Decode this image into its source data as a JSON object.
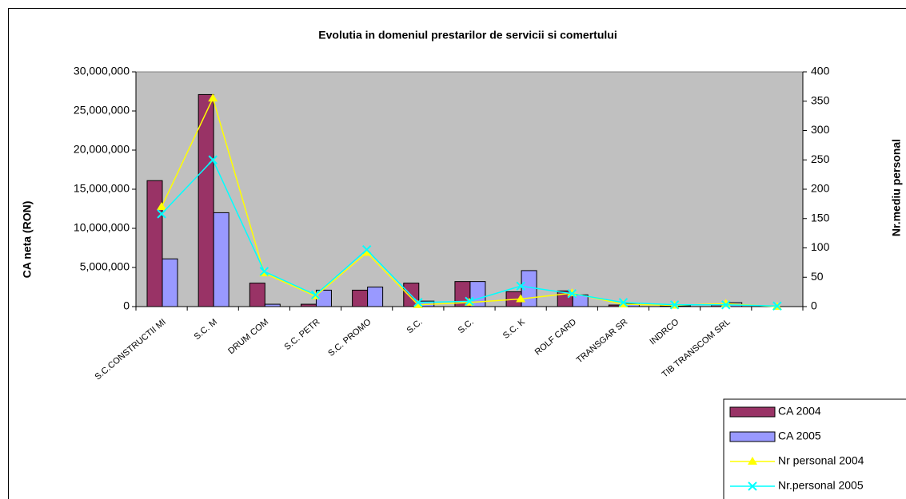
{
  "chart_data": {
    "type": "bar_line",
    "title": "Evolutia in domeniul prestarilor de servicii si comertului",
    "y_label": "CA neta (RON)",
    "y2_label": "Nr.mediu personal",
    "categories": [
      "S.C.CONSTRUCTII MI",
      "S.C. M",
      "DRUM COM",
      "S.C. PETR",
      "S.C. PROMO",
      "S.C.",
      "S.C.",
      "S.C. K",
      "ROLF CARD",
      "TRANSGAR SR",
      "INDRCO",
      "TIB TRANSCOM SRL",
      null
    ],
    "series": [
      {
        "name": "CA 2004",
        "kind": "bar",
        "color": "#993366",
        "values": [
          16100000,
          27100000,
          3000000,
          300000,
          2100000,
          3000000,
          3200000,
          1900000,
          2000000,
          200000,
          100000,
          200000,
          0
        ]
      },
      {
        "name": "CA 2005",
        "kind": "bar",
        "color": "#9999ff",
        "values": [
          6100000,
          12000000,
          300000,
          2100000,
          2500000,
          700000,
          3200000,
          4600000,
          1500000,
          400000,
          100000,
          500000,
          0
        ]
      },
      {
        "name": "Nr personal 2004",
        "kind": "line",
        "axis": "y2",
        "marker": "triangle",
        "color": "#ffff00",
        "values": [
          170,
          355,
          57,
          18,
          92,
          3,
          7,
          13,
          23,
          4,
          2,
          5,
          0
        ]
      },
      {
        "name": "Nr.personal 2005",
        "kind": "line",
        "axis": "y2",
        "marker": "x",
        "color": "#00ffff",
        "values": [
          158,
          250,
          60,
          20,
          97,
          7,
          9,
          35,
          22,
          7,
          3,
          3,
          1
        ]
      }
    ],
    "ylim": [
      0,
      30000000
    ],
    "yticks": [
      0,
      {
        "value": 5000000,
        "label": "5,000,000"
      },
      {
        "value": 10000000,
        "label": "10,000,000"
      },
      {
        "value": 15000000,
        "label": "15,000,000"
      },
      {
        "value": 20000000,
        "label": "20,000,000"
      },
      {
        "value": 25000000,
        "label": "25,000,000"
      },
      {
        "value": 30000000,
        "label": "30,000,000"
      }
    ],
    "y2lim": [
      0,
      400
    ],
    "y2ticks": [
      0,
      50,
      100,
      150,
      200,
      250,
      300,
      350,
      400
    ],
    "plot_background": "#c0c0c0",
    "legend": "lower right"
  }
}
